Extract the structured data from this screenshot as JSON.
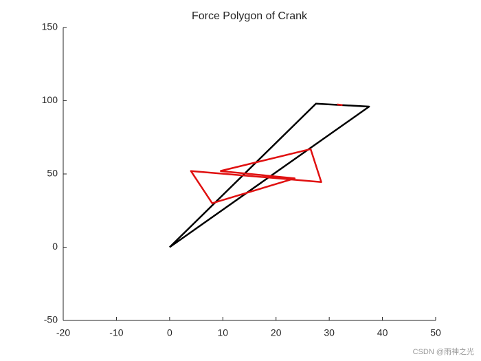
{
  "chart_data": {
    "type": "line",
    "title": "Force Polygon of Crank",
    "series": [
      {
        "color": "#000000",
        "x": [
          0,
          27.5,
          37.5,
          0
        ],
        "y": [
          0,
          98,
          96,
          0
        ]
      },
      {
        "color": "#e01010",
        "x": [
          9.5,
          26.5,
          28.5,
          4,
          8,
          23.5,
          9.5,
          null,
          31.5,
          32.5
        ],
        "y": [
          52,
          67,
          44.5,
          52,
          30,
          47,
          52,
          null,
          97.5,
          97
        ]
      }
    ],
    "xlim": [
      -20,
      50
    ],
    "ylim": [
      -50,
      150
    ],
    "xticks": [
      -20,
      -10,
      0,
      10,
      20,
      30,
      40,
      50
    ],
    "yticks": [
      -50,
      0,
      50,
      100,
      150
    ],
    "grid": false,
    "watermark": "CSDN @雨神之光"
  }
}
